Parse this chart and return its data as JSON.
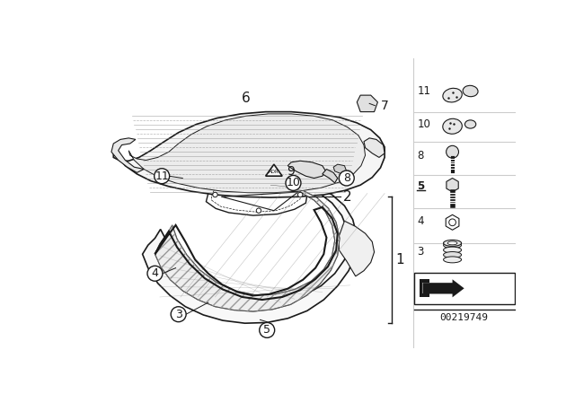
{
  "bg_color": "#ffffff",
  "fig_width": 6.4,
  "fig_height": 4.48,
  "dpi": 100,
  "part_number": "00219749",
  "line_color": "#1a1a1a",
  "gray_color": "#777777",
  "light_gray": "#cccccc",
  "mid_gray": "#aaaaaa"
}
